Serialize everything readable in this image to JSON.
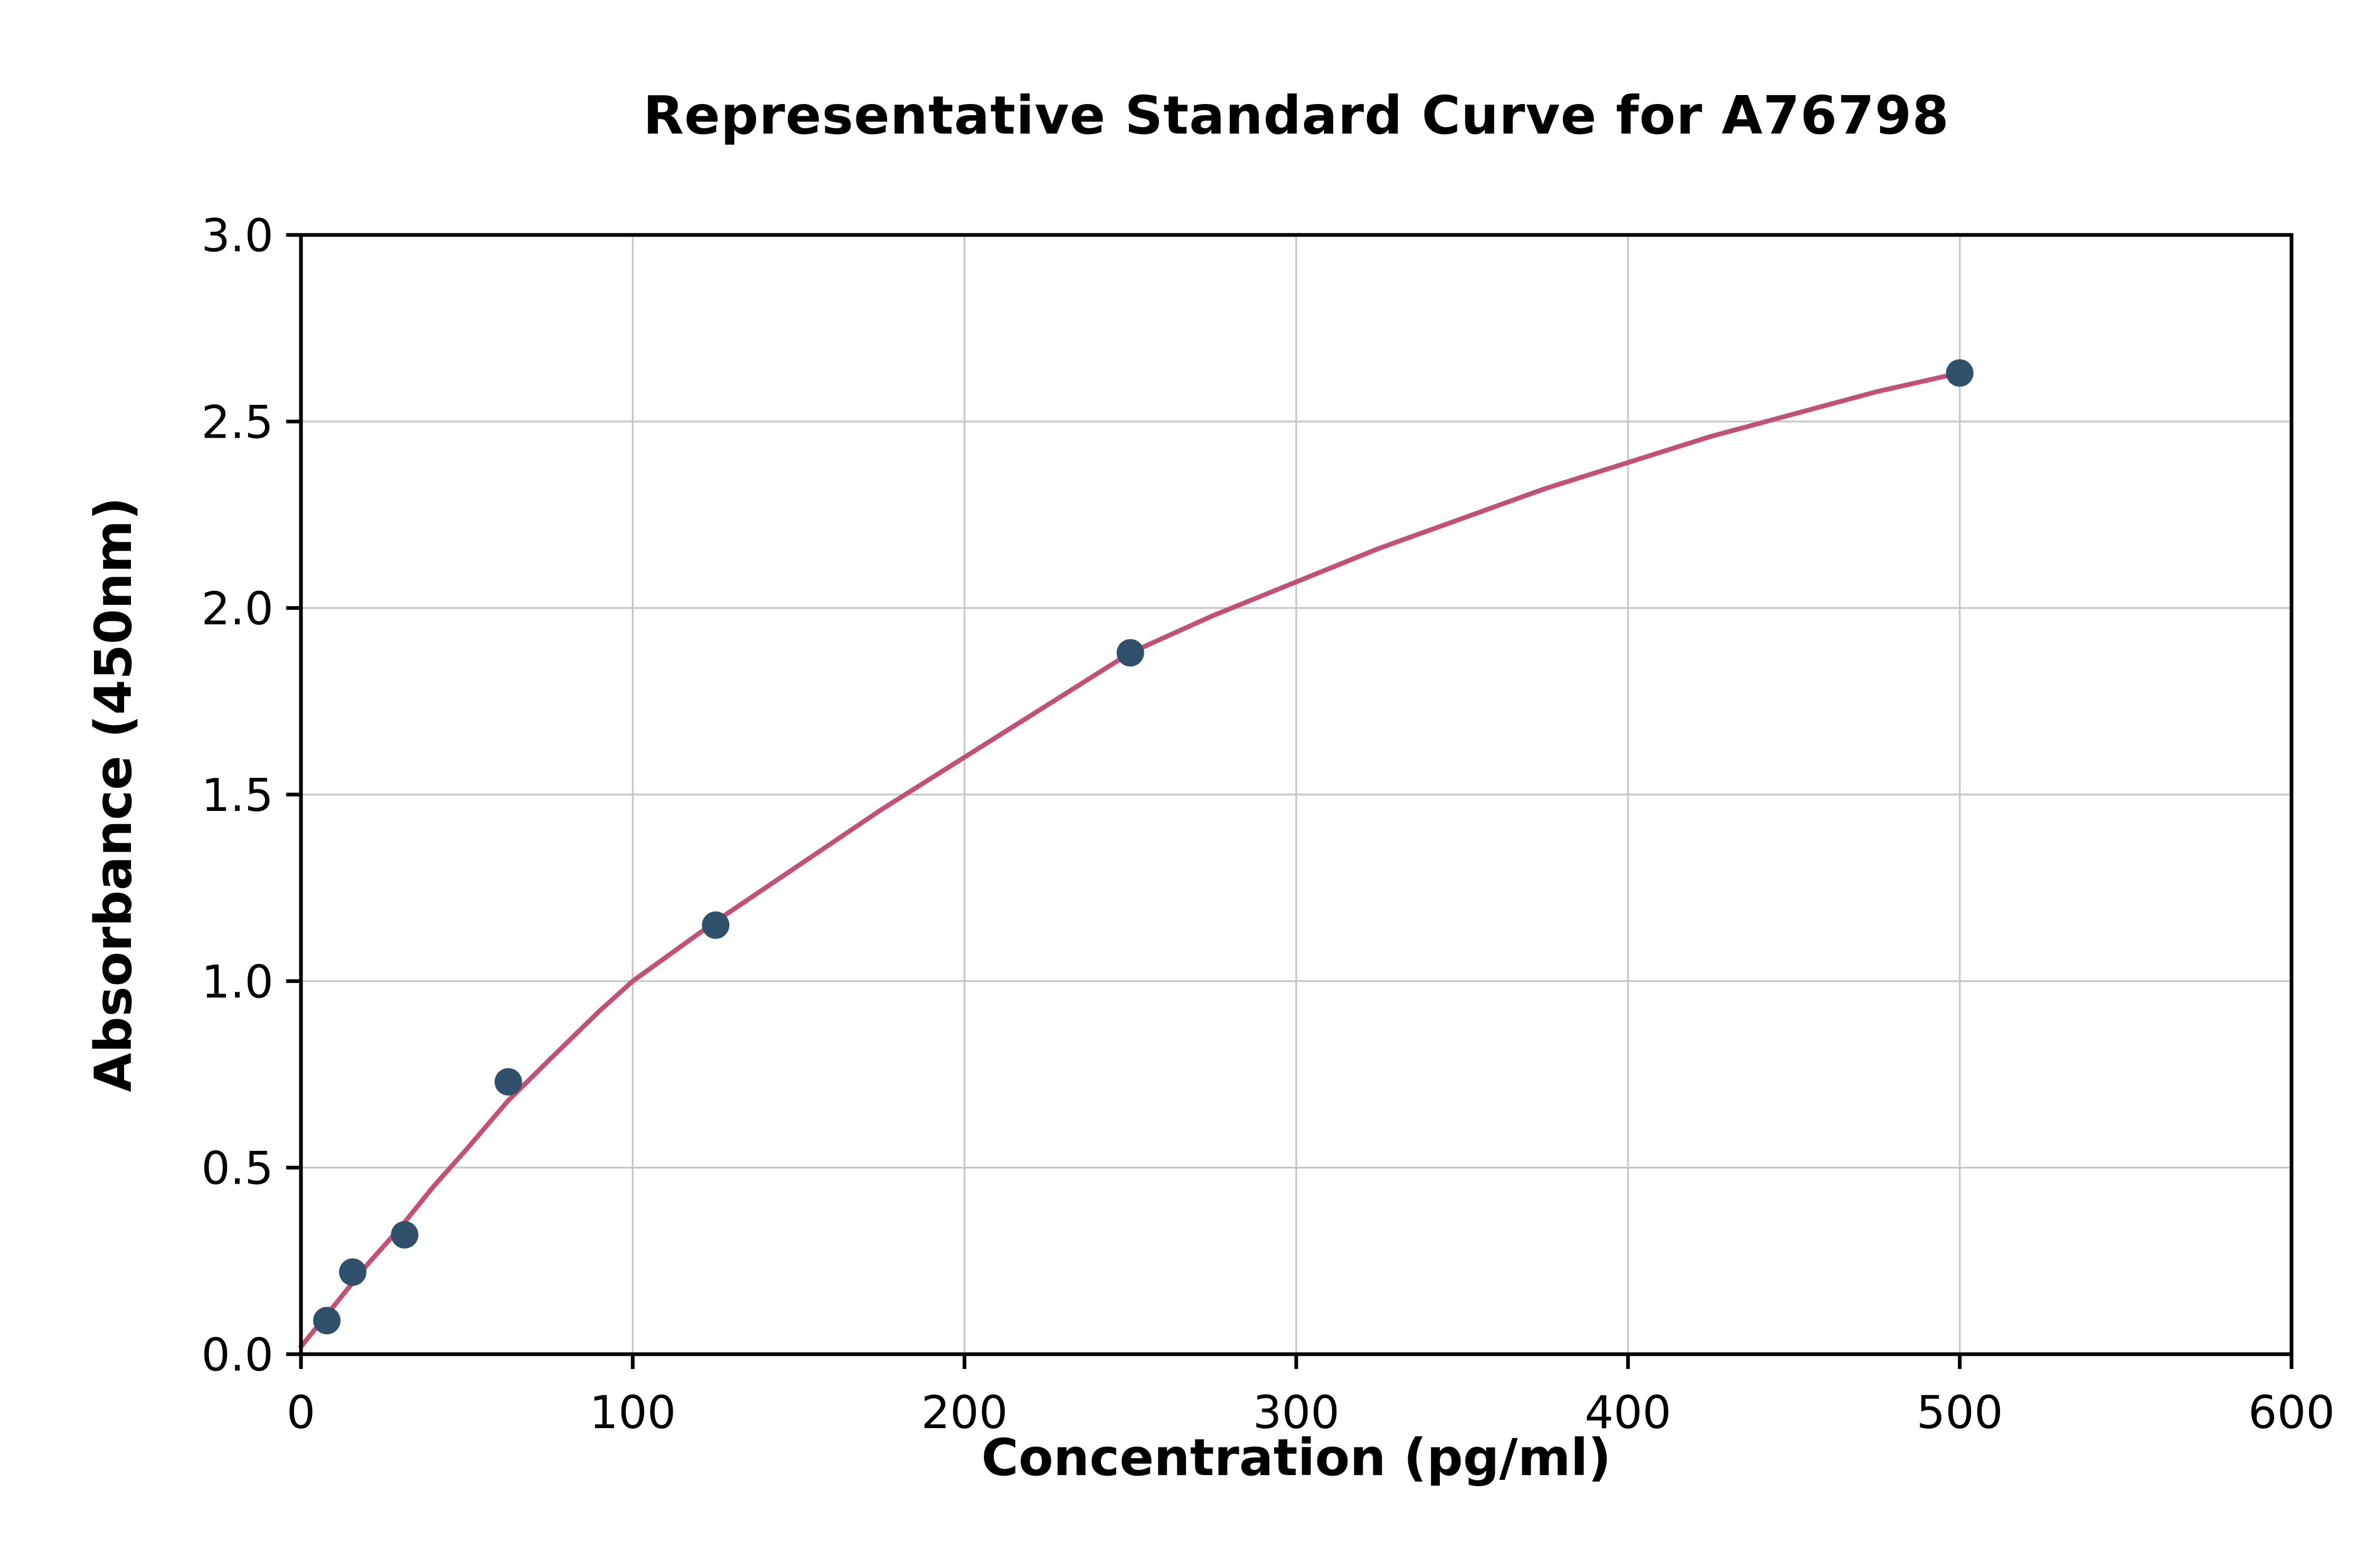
{
  "chart_data": {
    "type": "scatter",
    "title": "Representative Standard Curve for A76798",
    "xlabel": "Concentration (pg/ml)",
    "ylabel": "Absorbance (450nm)",
    "xlim": [
      0,
      600
    ],
    "ylim": [
      0,
      3
    ],
    "xticks": [
      0,
      100,
      200,
      300,
      400,
      500,
      600
    ],
    "yticks": [
      "0.0",
      "0.5",
      "1.0",
      "1.5",
      "2.0",
      "2.5",
      "3.0"
    ],
    "grid": true,
    "legend_position": "none",
    "colors": {
      "grid": "#c8c8c8",
      "axis": "#000000",
      "point": "#30506b",
      "curve": "#c35077"
    },
    "series": [
      {
        "name": "standard-points",
        "type": "scatter",
        "color": "#30506b",
        "points": [
          [
            7.8,
            0.09
          ],
          [
            15.6,
            0.22
          ],
          [
            31.25,
            0.32
          ],
          [
            62.5,
            0.73
          ],
          [
            125,
            1.15
          ],
          [
            250,
            1.88
          ],
          [
            500,
            2.63
          ]
        ]
      },
      {
        "name": "fitted-curve",
        "type": "line",
        "color": "#c35077",
        "points": [
          [
            0,
            0.02
          ],
          [
            10,
            0.13
          ],
          [
            20,
            0.24
          ],
          [
            30,
            0.34
          ],
          [
            40,
            0.45
          ],
          [
            50,
            0.55
          ],
          [
            62.5,
            0.68
          ],
          [
            75,
            0.79
          ],
          [
            90,
            0.92
          ],
          [
            100,
            1.0
          ],
          [
            125,
            1.16
          ],
          [
            150,
            1.31
          ],
          [
            175,
            1.46
          ],
          [
            200,
            1.6
          ],
          [
            225,
            1.74
          ],
          [
            250,
            1.88
          ],
          [
            275,
            1.98
          ],
          [
            300,
            2.07
          ],
          [
            325,
            2.16
          ],
          [
            350,
            2.24
          ],
          [
            375,
            2.32
          ],
          [
            400,
            2.39
          ],
          [
            425,
            2.46
          ],
          [
            450,
            2.52
          ],
          [
            475,
            2.58
          ],
          [
            500,
            2.63
          ]
        ]
      }
    ]
  }
}
